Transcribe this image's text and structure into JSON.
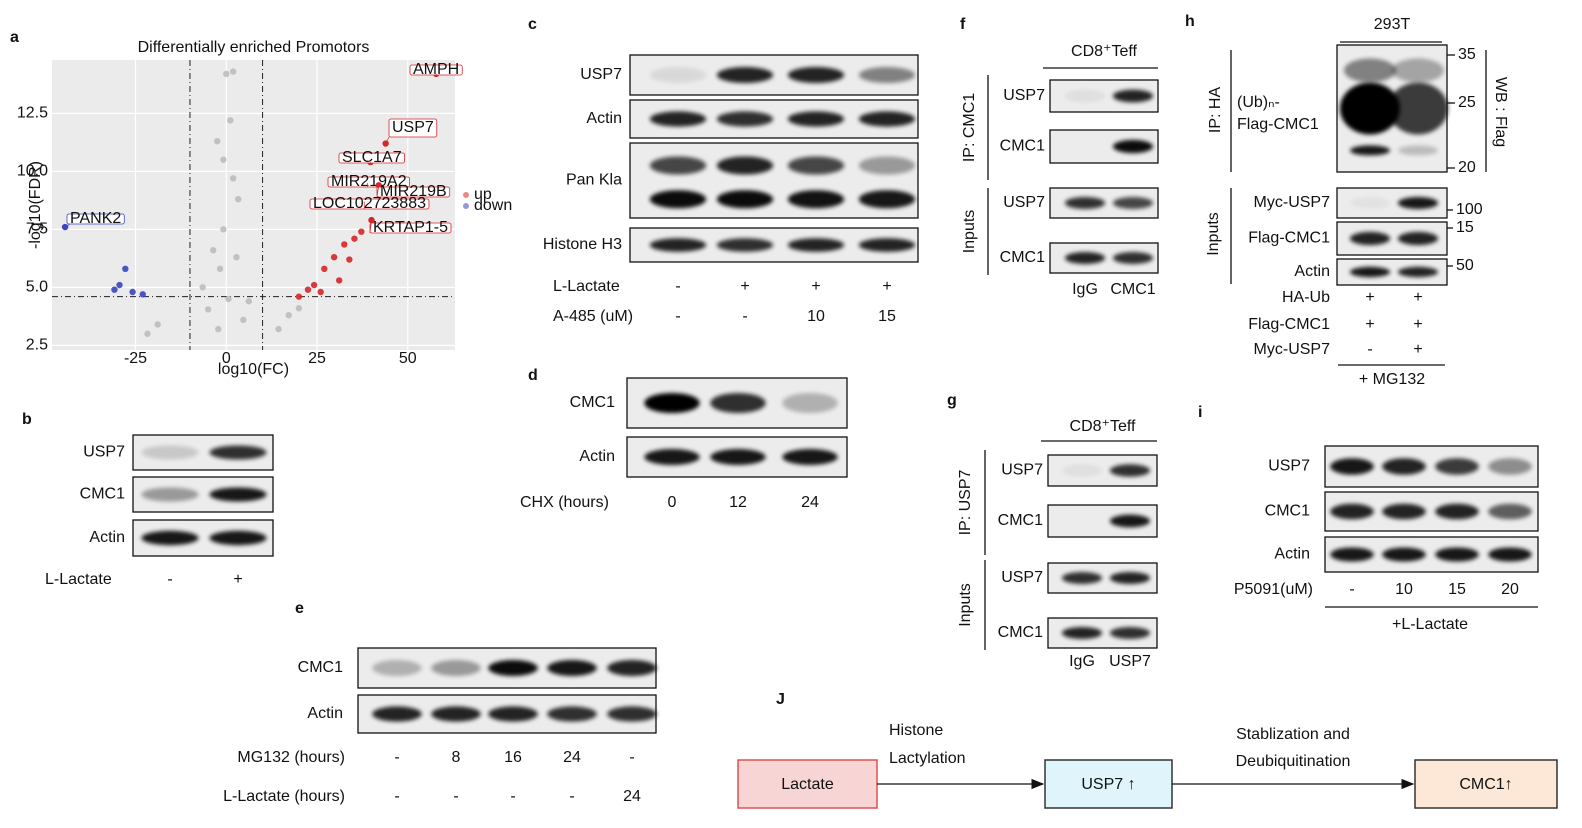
{
  "panels": {
    "a": {
      "label": "a",
      "chart_data": {
        "type": "scatter",
        "title": "Differentially enriched Promotors",
        "x_label": "log10(FC)",
        "y_label": "-log10(FDR)",
        "xlim": [
          -48,
          63
        ],
        "ylim": [
          2.3,
          14.8
        ],
        "xticks": [
          -25,
          0,
          25,
          50
        ],
        "yticks": [
          2.5,
          {
            "value": 5,
            "label": "5.0"
          },
          7.5,
          {
            "value": 10,
            "label": "10.0"
          },
          12.5
        ],
        "grid": true,
        "cutoffs": {
          "x": [
            -10,
            10
          ],
          "y": 4.6
        },
        "legend": "right",
        "series": [
          {
            "name": "up",
            "color": "#d62728",
            "x": [
              20,
              24.2,
              27,
              29.7,
              32.5,
              35.3,
              37.2,
              33.9,
              31.1,
              26,
              22.5
            ],
            "y": [
              4.6,
              5.1,
              5.8,
              6.3,
              6.85,
              7.1,
              7.4,
              6.2,
              5.3,
              4.8,
              4.9
            ]
          },
          {
            "name": "down",
            "color": "#3b45c0",
            "x": [
              -27.8,
              -29.4,
              -25.8,
              -23,
              -30.8
            ],
            "y": [
              5.8,
              5.1,
              4.8,
              4.7,
              4.9
            ]
          },
          {
            "color": "#bdbdbd",
            "x": [
              0,
              1.9,
              1.1,
              -0.8,
              3.3,
              -3.6,
              0.6,
              -2.2,
              4.7,
              -5,
              -18.9,
              -21.7,
              14.4,
              17.2,
              20,
              -0.8,
              1.9,
              -1.7,
              -2.5,
              2.8,
              -6.5,
              6.2
            ],
            "y": [
              14.2,
              14.3,
              12.2,
              10.5,
              8.8,
              6.6,
              4.5,
              3.2,
              3.6,
              4.05,
              3.4,
              3,
              3.2,
              3.8,
              4.1,
              7.5,
              9.7,
              5.8,
              11.3,
              6.3,
              5,
              4.4
            ]
          }
        ],
        "annotations": [
          {
            "text": "AMPH",
            "x": 57.8,
            "y": 14.2
          },
          {
            "text": "USP7",
            "x": 43.9,
            "y": 11.2
          },
          {
            "text": "SLC1A7",
            "x": 39.7,
            "y": 10.4
          },
          {
            "text": "MIR219A2",
            "x": 38.9,
            "y": 9.5
          },
          {
            "text": "MIR219B",
            "x": 42,
            "y": 9.4
          },
          {
            "text": "LOC102723883",
            "x": 38,
            "y": 8.7
          },
          {
            "text": "KRTAP1-5",
            "x": 40,
            "y": 7.9
          },
          {
            "text": "PANK2",
            "x": -44.4,
            "y": 7.6
          }
        ]
      }
    },
    "b": {
      "label": "b",
      "blots": [
        "USP7",
        "CMC1",
        "Actin"
      ],
      "conditions": [
        {
          "name": "L-Lactate",
          "values": [
            "-",
            "+"
          ]
        }
      ]
    },
    "c": {
      "label": "c",
      "blots": [
        "USP7",
        "Actin",
        "Pan Kla",
        "Histone H3"
      ],
      "conditions": [
        {
          "name": "L-Lactate",
          "values": [
            "-",
            "+",
            "+",
            "+"
          ]
        },
        {
          "name": "A-485 (uM)",
          "values": [
            "-",
            "-",
            "10",
            "15"
          ]
        }
      ]
    },
    "d": {
      "label": "d",
      "blots": [
        "CMC1",
        "Actin"
      ],
      "conditions": [
        {
          "name": "CHX (hours)",
          "values": [
            "0",
            "12",
            "24"
          ]
        }
      ]
    },
    "e": {
      "label": "e",
      "blots": [
        "CMC1",
        "Actin"
      ],
      "conditions": [
        {
          "name": "MG132 (hours)",
          "values": [
            "-",
            "8",
            "16",
            "24",
            "-"
          ]
        },
        {
          "name": "L-Lactate (hours)",
          "values": [
            "-",
            "-",
            "-",
            "-",
            "24"
          ]
        }
      ]
    },
    "f": {
      "label": "f",
      "header": "CD8⁺Teff",
      "groups": [
        {
          "name": "IP: CMC1",
          "blots": [
            "USP7",
            "CMC1"
          ]
        },
        {
          "name": "Inputs",
          "blots": [
            "USP7",
            "CMC1"
          ]
        }
      ],
      "lanes": [
        "IgG",
        "CMC1"
      ]
    },
    "g": {
      "label": "g",
      "header": "CD8⁺Teff",
      "groups": [
        {
          "name": "IP: USP7",
          "blots": [
            "USP7",
            "CMC1"
          ]
        },
        {
          "name": "Inputs",
          "blots": [
            "USP7",
            "CMC1"
          ]
        }
      ],
      "lanes": [
        "IgG",
        "USP7"
      ]
    },
    "h": {
      "label": "h",
      "header": "293T",
      "groups": [
        {
          "name": "IP: HA",
          "blots": [
            [
              "(Ub)ₙ-",
              "Flag-CMC1"
            ]
          ],
          "markers": [
            35,
            25,
            20
          ],
          "detection": "WB : Flag"
        },
        {
          "name": "Inputs",
          "blots": [
            "Myc-USP7",
            "Flag-CMC1",
            "Actin"
          ],
          "markers": [
            100,
            15,
            50
          ]
        }
      ],
      "conditions": [
        {
          "name": "HA-Ub",
          "values": [
            "+",
            "+"
          ]
        },
        {
          "name": "Flag-CMC1",
          "values": [
            "+",
            "+"
          ]
        },
        {
          "name": "Myc-USP7",
          "values": [
            "-",
            "+"
          ]
        }
      ],
      "footer": "+ MG132"
    },
    "i": {
      "label": "i",
      "blots": [
        "USP7",
        "CMC1",
        "Actin"
      ],
      "conditions": [
        {
          "name": "P5091(uM)",
          "values": [
            "-",
            "10",
            "15",
            "20"
          ]
        }
      ],
      "footer": "+L-Lactate"
    },
    "j": {
      "label": "J",
      "nodes": [
        {
          "label": "Lactate"
        },
        {
          "label": "USP7 ↑"
        },
        {
          "label": "CMC1↑"
        }
      ],
      "edges": [
        {
          "label": [
            "Histone",
            "Lactylation"
          ]
        },
        {
          "label": [
            "Stablization and",
            "Deubiquitination"
          ]
        }
      ]
    }
  }
}
